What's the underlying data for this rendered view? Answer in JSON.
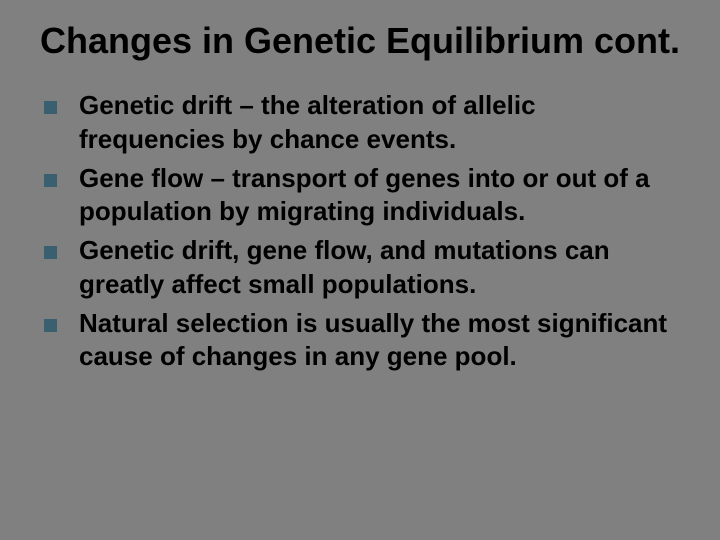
{
  "slide": {
    "title": "Changes in Genetic Equilibrium cont.",
    "background_color": "#808080",
    "text_color": "#000000",
    "bullet_color": "#3a5f6f",
    "title_fontsize": 36,
    "body_fontsize": 26,
    "bullets": [
      {
        "text": "Genetic drift – the alteration of allelic frequencies by chance events."
      },
      {
        "text": "Gene flow – transport of genes into or out of a population by migrating individuals."
      },
      {
        "text": "Genetic drift, gene flow, and mutations can greatly affect small populations."
      },
      {
        "text": "Natural selection is usually the most significant cause of changes in any gene pool."
      }
    ]
  }
}
